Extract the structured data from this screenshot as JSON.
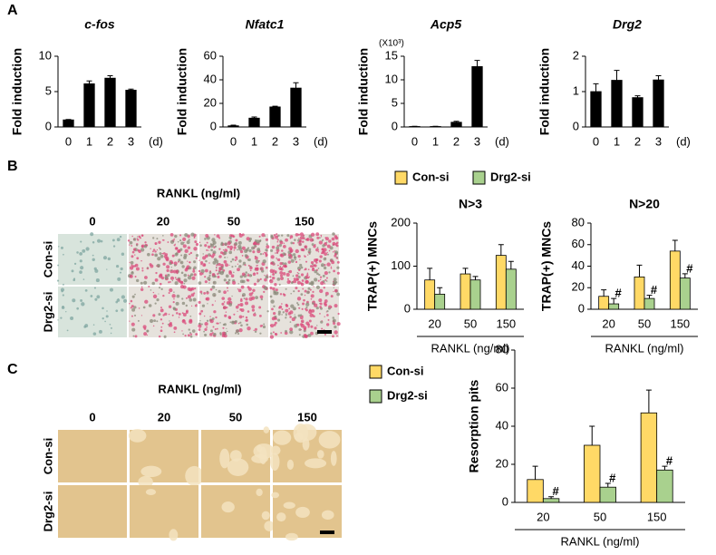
{
  "chart_data": [
    {
      "type": "bar",
      "title": "c-fos",
      "ylabel": "Fold induction",
      "xlabel": "(d)",
      "categories": [
        "0",
        "1",
        "2",
        "3"
      ],
      "values": [
        1,
        6.1,
        6.9,
        5.2
      ],
      "errors": [
        0.05,
        0.4,
        0.35,
        0.15
      ],
      "color": "#000000",
      "ylim": [
        0,
        10
      ],
      "yticks": [
        0,
        5,
        10
      ]
    },
    {
      "type": "bar",
      "title": "Nfatc1",
      "ylabel": "Fold induction",
      "xlabel": "(d)",
      "categories": [
        "0",
        "1",
        "2",
        "3"
      ],
      "values": [
        1,
        7.5,
        17,
        33
      ],
      "errors": [
        0.5,
        1,
        0.6,
        4.5
      ],
      "color": "#000000",
      "ylim": [
        0,
        60
      ],
      "yticks": [
        0,
        20,
        40,
        60
      ]
    },
    {
      "type": "bar",
      "title": "Acp5",
      "subtitle": "(X10³)",
      "ylabel": "Fold induction",
      "xlabel": "(d)",
      "categories": [
        "0",
        "1",
        "2",
        "3"
      ],
      "values": [
        0.1,
        0.1,
        1,
        12.8
      ],
      "errors": [
        0.05,
        0.05,
        0.2,
        1.3
      ],
      "color": "#000000",
      "ylim": [
        0,
        15
      ],
      "yticks": [
        0,
        5,
        10,
        15
      ]
    },
    {
      "type": "bar",
      "title": "Drg2",
      "ylabel": "Fold induction",
      "xlabel": "(d)",
      "categories": [
        "0",
        "1",
        "2",
        "3"
      ],
      "values": [
        1,
        1.32,
        0.83,
        1.33
      ],
      "errors": [
        0.22,
        0.28,
        0.05,
        0.12
      ],
      "color": "#000000",
      "ylim": [
        0,
        2
      ],
      "yticks": [
        0,
        1,
        2
      ]
    },
    {
      "type": "bar",
      "title": "N>3",
      "ylabel": "TRAP(+) MNCs",
      "xlabel": "RANKL (ng/ml)",
      "categories": [
        "20",
        "50",
        "150"
      ],
      "legend": "top",
      "series": [
        {
          "name": "Con-si",
          "color": "#ffd966",
          "values": [
            68,
            82,
            125
          ],
          "errors": [
            27,
            13,
            25
          ]
        },
        {
          "name": "Drg2-si",
          "color": "#a9d18e",
          "values": [
            35,
            68,
            93
          ],
          "errors": [
            15,
            8,
            18
          ]
        }
      ],
      "ylim": [
        0,
        200
      ],
      "yticks": [
        0,
        100,
        200
      ]
    },
    {
      "type": "bar",
      "title": "N>20",
      "ylabel": "TRAP(+) MNCs",
      "xlabel": "RANKL (ng/ml)",
      "categories": [
        "20",
        "50",
        "150"
      ],
      "series": [
        {
          "color": "#ffd966",
          "values": [
            12,
            30,
            54
          ],
          "errors": [
            6,
            11,
            10
          ]
        },
        {
          "color": "#a9d18e",
          "values": [
            5,
            10,
            29
          ],
          "errors": [
            5,
            3,
            4
          ],
          "significance": [
            "#",
            "#",
            "#"
          ]
        }
      ],
      "ylim": [
        0,
        80
      ],
      "yticks": [
        0,
        20,
        40,
        60,
        80
      ]
    },
    {
      "type": "bar",
      "ylabel": "Resorption pits",
      "xlabel": "RANKL (ng/ml)",
      "categories": [
        "20",
        "50",
        "150"
      ],
      "legend": "left",
      "series": [
        {
          "name": "Con-si",
          "color": "#ffd966",
          "values": [
            12,
            30,
            47
          ],
          "errors": [
            7,
            10,
            12
          ]
        },
        {
          "name": "Drg2-si",
          "color": "#a9d18e",
          "values": [
            2,
            8,
            17
          ],
          "errors": [
            1,
            2,
            2
          ],
          "significance": [
            "#",
            "#",
            "#"
          ]
        }
      ],
      "ylim": [
        0,
        80
      ],
      "yticks": [
        0,
        20,
        40,
        60,
        80
      ]
    }
  ],
  "panels": {
    "A": {
      "label": "A"
    },
    "B": {
      "label": "B",
      "title": "RANKL (ng/ml)",
      "columns": [
        "0",
        "20",
        "50",
        "150"
      ],
      "rows": [
        "Con-si",
        "Drg2-si"
      ]
    },
    "C": {
      "label": "C",
      "title": "RANKL (ng/ml)",
      "columns": [
        "0",
        "20",
        "50",
        "150"
      ],
      "rows": [
        "Con-si",
        "Drg2-si"
      ]
    }
  }
}
